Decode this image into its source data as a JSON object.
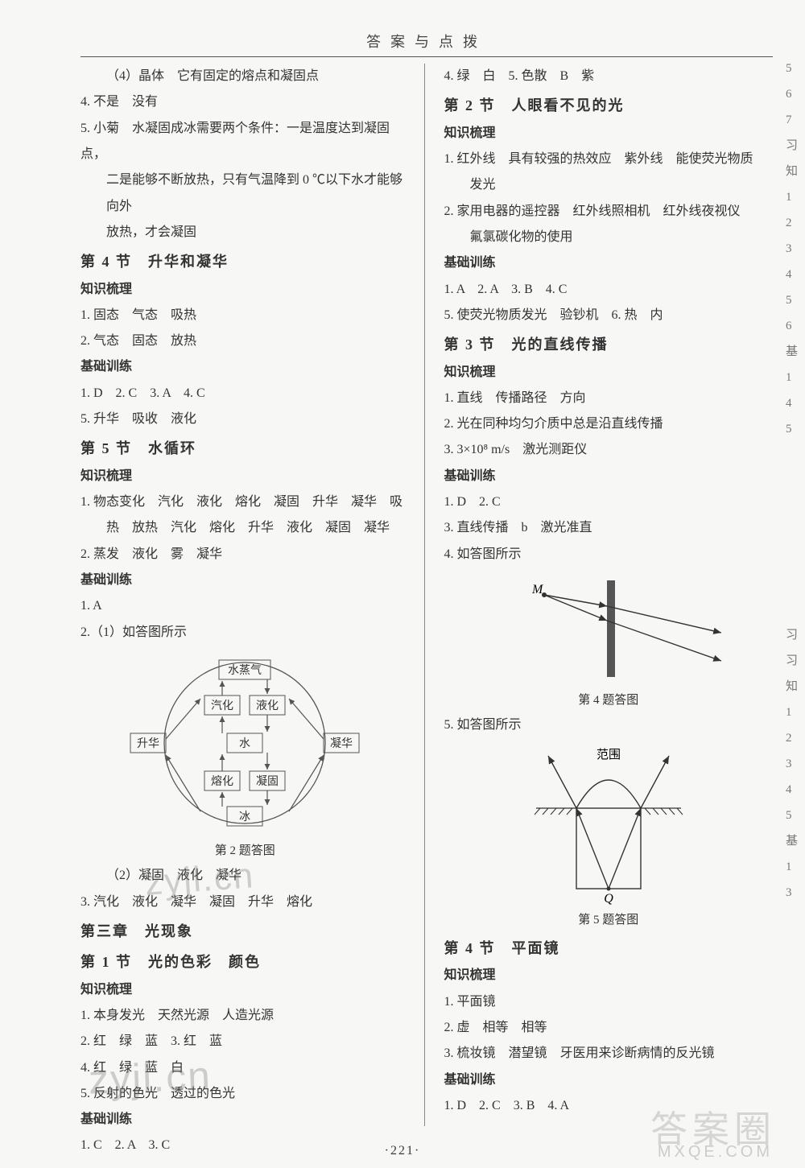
{
  "header": "答案与点拨",
  "page_number": "·221·",
  "left": {
    "l1": "（4）晶体　它有固定的熔点和凝固点",
    "l2": "4. 不是　没有",
    "l3": "5. 小菊　水凝固成冰需要两个条件：一是温度达到凝固点，",
    "l3b": "二是能够不断放热，只有气温降到 0 ℃以下水才能够向外",
    "l3c": "放热，才会凝固",
    "sec4": "第 4 节　升华和凝华",
    "zs1": "知识梳理",
    "l4": "1. 固态　气态　吸热",
    "l5": "2. 气态　固态　放热",
    "jc1": "基础训练",
    "l6": "1. D　2. C　3. A　4. C",
    "l7": "5. 升华　吸收　液化",
    "sec5": "第 5 节　水循环",
    "zs2": "知识梳理",
    "l8": "1. 物态变化　汽化　液化　熔化　凝固　升华　凝华　吸",
    "l8b": "热　放热　汽化　熔化　升华　液化　凝固　凝华",
    "l9": "2. 蒸发　液化　雾　凝华",
    "jc2": "基础训练",
    "l10": "1. A",
    "l11": "2.（1）如答图所示",
    "cap1": "第 2 题答图",
    "l12": "（2）凝固　液化　凝华",
    "l13": "3. 汽化　液化　凝华　凝固　升华　熔化",
    "ch3": "第三章　光现象",
    "sec1b": "第 1 节　光的色彩　颜色",
    "zs3": "知识梳理",
    "l14": "1. 本身发光　天然光源　人造光源",
    "l15": "2. 红　绿　蓝　3. 红　蓝",
    "l16": "4. 红　绿　蓝　白",
    "l17": "5. 反射的色光　透过的色光",
    "jc3": "基础训练",
    "l18": "1. C　2. A　3. C"
  },
  "right": {
    "r1": "4. 绿　白　5. 色散　B　紫",
    "sec2": "第 2 节　人眼看不见的光",
    "zs1": "知识梳理",
    "r2": "1. 红外线　具有较强的热效应　紫外线　能使荧光物质",
    "r2b": "发光",
    "r3": "2. 家用电器的遥控器　红外线照相机　红外线夜视仪",
    "r3b": "氟氯碳化物的使用",
    "jc1": "基础训练",
    "r4": "1. A　2. A　3. B　4. C",
    "r5": "5. 使荧光物质发光　验钞机　6. 热　内",
    "sec3": "第 3 节　光的直线传播",
    "zs2": "知识梳理",
    "r6": "1. 直线　传播路径　方向",
    "r7": "2. 光在同种均匀介质中总是沿直线传播",
    "r8": "3. 3×10⁸ m/s　激光测距仪",
    "jc2": "基础训练",
    "r9": "1. D　2. C",
    "r10": "3. 直线传播　b　激光准直",
    "r11": "4. 如答图所示",
    "cap4": "第 4 题答图",
    "r12": "5. 如答图所示",
    "lbl_fanwei": "范围",
    "lbl_Q": "Q",
    "lbl_M": "M",
    "cap5": "第 5 题答图",
    "sec4b": "第 4 节　平面镜",
    "zs3": "知识梳理",
    "r13": "1. 平面镜",
    "r14": "2. 虚　相等　相等",
    "r15": "3. 梳妆镜　潜望镜　牙医用来诊断病情的反光镜",
    "jc3": "基础训练",
    "r16": "1. D　2. C　3. B　4. A"
  },
  "cycle_diagram": {
    "boxes": {
      "top": "水蒸气",
      "mid": "水",
      "bottom": "冰",
      "left_up": "汽化",
      "right_up": "液化",
      "left_down": "熔化",
      "right_down": "凝固",
      "far_left": "升华",
      "far_right": "凝华"
    },
    "stroke": "#555",
    "fill": "#ffffff00"
  },
  "strip": [
    "5",
    "6",
    "7",
    "习",
    "知",
    "1",
    "2",
    "3",
    "4",
    "5",
    "6",
    "基",
    "1",
    "4",
    "5",
    "",
    "",
    "",
    "",
    "",
    "",
    "",
    "习",
    "习",
    "知",
    "1",
    "2",
    "3",
    "4",
    "5",
    "基",
    "1",
    "3"
  ],
  "watermarks": {
    "w1": "zyjl.cn",
    "w2": "zyjl.cn",
    "ans": "答案圈",
    "mxqe": "MXQE.COM"
  }
}
